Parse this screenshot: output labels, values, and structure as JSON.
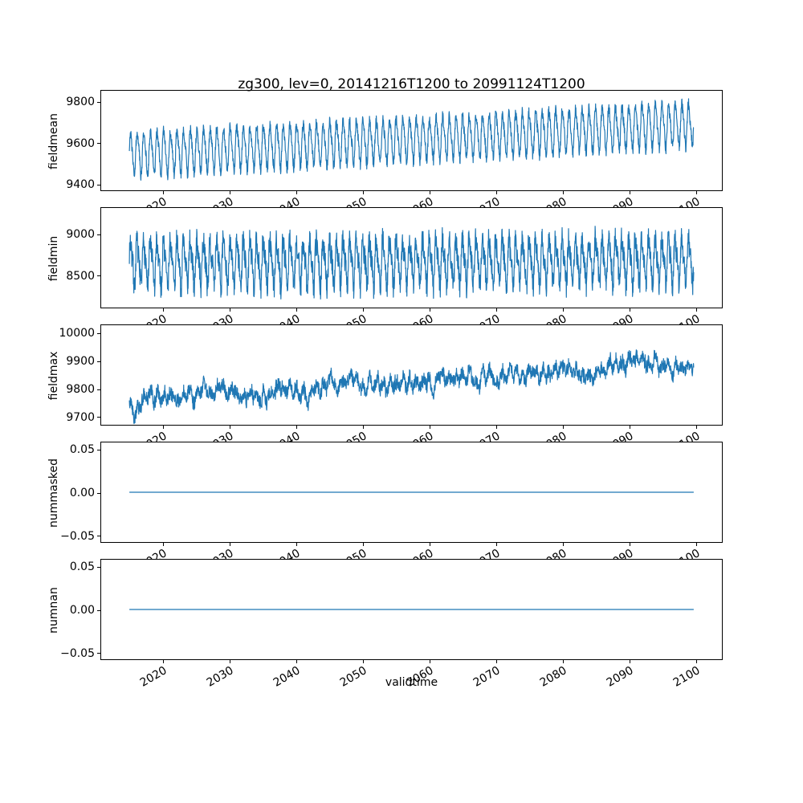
{
  "figure": {
    "title": "zg300, lev=0, 20141216T1200 to 20991124T1200",
    "xlabel": "validtime",
    "line_color": "#1f77b4",
    "background": "#ffffff"
  },
  "chart_data": [
    {
      "type": "line",
      "ylabel": "fieldmean",
      "x_start": 2014.96,
      "x_end": 2099.9,
      "xlim": [
        2010.71,
        2104.15
      ],
      "xticks": [
        2020,
        2030,
        2040,
        2050,
        2060,
        2070,
        2080,
        2090,
        2100
      ],
      "xticklabels": [
        "2020",
        "2030",
        "2040",
        "2050",
        "2060",
        "2070",
        "2080",
        "2090",
        "2100"
      ],
      "yticks": [
        9400,
        9600,
        9800
      ],
      "yticklabels": [
        "9400",
        "9600",
        "9800"
      ],
      "ylim": [
        9365,
        9855
      ],
      "model": {
        "kind": "seasonal",
        "mean_start": 9545,
        "mean_end": 9690,
        "seasonal_amp": 100,
        "harmonic_amp": 20,
        "noise_amp": 28,
        "walk_step": 0,
        "samples_per_year": 30,
        "seed": 3
      }
    },
    {
      "type": "line",
      "ylabel": "fieldmin",
      "x_start": 2014.96,
      "x_end": 2099.9,
      "xlim": [
        2010.71,
        2104.15
      ],
      "xticks": [
        2020,
        2030,
        2040,
        2050,
        2060,
        2070,
        2080,
        2090,
        2100
      ],
      "xticklabels": [
        "2020",
        "2030",
        "2040",
        "2050",
        "2060",
        "2070",
        "2080",
        "2090",
        "2100"
      ],
      "yticks": [
        8500,
        9000
      ],
      "yticklabels": [
        "8500",
        "9000"
      ],
      "ylim": [
        8100,
        9320
      ],
      "model": {
        "kind": "seasonal",
        "mean_start": 8640,
        "mean_end": 8690,
        "seasonal_amp": 250,
        "harmonic_amp": 90,
        "noise_amp": 150,
        "walk_step": 0,
        "samples_per_year": 30,
        "seed": 7
      }
    },
    {
      "type": "line",
      "ylabel": "fieldmax",
      "x_start": 2014.96,
      "x_end": 2099.9,
      "xlim": [
        2010.71,
        2104.15
      ],
      "xticks": [
        2020,
        2030,
        2040,
        2050,
        2060,
        2070,
        2080,
        2090,
        2100
      ],
      "xticklabels": [
        "2020",
        "2030",
        "2040",
        "2050",
        "2060",
        "2070",
        "2080",
        "2090",
        "2100"
      ],
      "yticks": [
        9700,
        9800,
        9900,
        10000
      ],
      "yticklabels": [
        "9700",
        "9800",
        "9900",
        "10000"
      ],
      "ylim": [
        9668,
        10030
      ],
      "model": {
        "kind": "seasonal",
        "mean_start": 9758,
        "mean_end": 9888,
        "seasonal_amp": 15,
        "harmonic_amp": 0,
        "noise_amp": 22,
        "walk_step": 10,
        "samples_per_year": 30,
        "seed": 13
      }
    },
    {
      "type": "line",
      "ylabel": "nummasked",
      "x_start": 2014.96,
      "x_end": 2099.9,
      "xlim": [
        2010.71,
        2104.15
      ],
      "xticks": [
        2020,
        2030,
        2040,
        2050,
        2060,
        2070,
        2080,
        2090,
        2100
      ],
      "xticklabels": [
        "2020",
        "2030",
        "2040",
        "2050",
        "2060",
        "2070",
        "2080",
        "2090",
        "2100"
      ],
      "yticks": [
        -0.05,
        0.0,
        0.05
      ],
      "yticklabels": [
        "−0.05",
        "0.00",
        "0.05"
      ],
      "ylim": [
        -0.0585,
        0.0585
      ],
      "model": {
        "kind": "constant",
        "value": 0
      }
    },
    {
      "type": "line",
      "ylabel": "numnan",
      "x_start": 2014.96,
      "x_end": 2099.9,
      "xlim": [
        2010.71,
        2104.15
      ],
      "xticks": [
        2020,
        2030,
        2040,
        2050,
        2060,
        2070,
        2080,
        2090,
        2100
      ],
      "xticklabels": [
        "2020",
        "2030",
        "2040",
        "2050",
        "2060",
        "2070",
        "2080",
        "2090",
        "2100"
      ],
      "yticks": [
        -0.05,
        0.0,
        0.05
      ],
      "yticklabels": [
        "−0.05",
        "0.00",
        "0.05"
      ],
      "ylim": [
        -0.0585,
        0.0585
      ],
      "model": {
        "kind": "constant",
        "value": 0
      }
    }
  ]
}
